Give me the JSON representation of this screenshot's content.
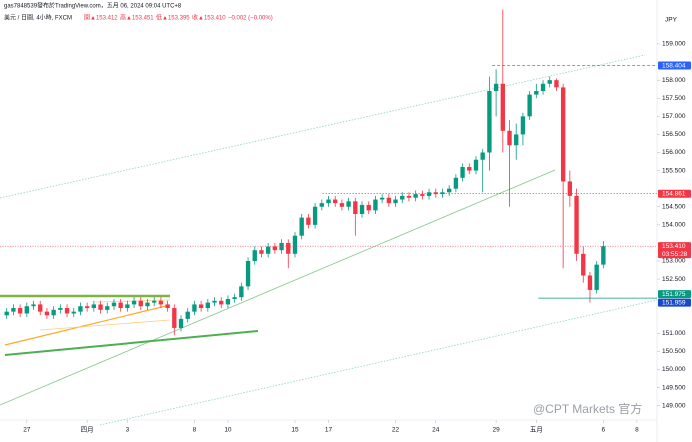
{
  "header": {
    "publisher": "gas7848539發布於TradingView.com，五月 06, 2024 09:04 UTC+8",
    "symbol": "美元 / 日圓, 4小時, FXCM",
    "open": "開▲153.412",
    "high": "高▲153.451",
    "low": "低▲153.395",
    "close": "收▲153.410",
    "change": "−0.002 (−0.00%)"
  },
  "currency": "JPY",
  "countdown": "03:55:28",
  "watermark": "@CPT Markets 官方",
  "chart_data": {
    "type": "candlestick",
    "up_color": "#089981",
    "down_color": "#f23645",
    "open": [
      151.5,
      151.6,
      151.7,
      151.55,
      151.75,
      151.8,
      151.6,
      151.5,
      151.65,
      151.7,
      151.55,
      151.6,
      151.75,
      151.7,
      151.8,
      151.65,
      151.75,
      151.85,
      151.7,
      151.8,
      151.9,
      151.75,
      151.85,
      151.9,
      151.8,
      151.7,
      151.15,
      151.4,
      151.6,
      151.8,
      151.7,
      151.85,
      151.9,
      151.8,
      151.95,
      152.0,
      152.3,
      153.0,
      153.3,
      153.2,
      153.4,
      153.3,
      153.5,
      153.2,
      153.7,
      154.2,
      154.0,
      154.5,
      154.6,
      154.7,
      154.6,
      154.5,
      154.65,
      154.3,
      154.55,
      154.4,
      154.7,
      154.75,
      154.6,
      154.7,
      154.8,
      154.75,
      154.85,
      154.8,
      154.9,
      154.85,
      154.9,
      155.0,
      155.3,
      155.6,
      155.5,
      155.8,
      156.0,
      157.7,
      157.9,
      156.6,
      156.2,
      156.5,
      157.0,
      157.6,
      157.7,
      157.9,
      158.0,
      157.8,
      155.2,
      154.8,
      153.2,
      152.6,
      152.2,
      152.9
    ],
    "high": [
      151.7,
      151.8,
      151.8,
      151.85,
      151.9,
      151.9,
      151.7,
      151.75,
      151.8,
      151.8,
      151.7,
      151.85,
      151.85,
      151.9,
      151.9,
      151.85,
      151.95,
      151.95,
      151.9,
      152.0,
      152.0,
      151.95,
      152.0,
      152.0,
      151.9,
      151.8,
      151.5,
      151.7,
      151.9,
      151.9,
      151.95,
      152.0,
      152.0,
      152.05,
      152.1,
      152.4,
      153.1,
      153.4,
      153.4,
      153.5,
      153.5,
      153.6,
      153.6,
      153.8,
      154.3,
      154.3,
      154.6,
      154.7,
      154.8,
      154.8,
      154.7,
      154.75,
      154.75,
      154.65,
      154.65,
      154.8,
      154.85,
      154.85,
      154.8,
      154.9,
      154.9,
      154.95,
      154.95,
      155.0,
      155.0,
      155.0,
      155.1,
      155.4,
      155.7,
      155.7,
      155.9,
      156.1,
      158.1,
      158.3,
      159.95,
      156.9,
      156.8,
      157.1,
      157.7,
      157.9,
      158.0,
      158.1,
      158.05,
      157.9,
      155.5,
      155.0,
      153.4,
      152.7,
      153.0,
      153.55
    ],
    "low": [
      151.4,
      151.5,
      151.45,
      151.45,
      151.65,
      151.5,
      151.4,
      151.4,
      151.55,
      151.45,
      151.45,
      151.5,
      151.6,
      151.6,
      151.55,
      151.55,
      151.65,
      151.6,
      151.6,
      151.7,
      151.65,
      151.65,
      151.75,
      151.7,
      151.6,
      150.95,
      151.05,
      151.3,
      151.5,
      151.6,
      151.6,
      151.75,
      151.7,
      151.7,
      151.85,
      151.9,
      152.2,
      152.9,
      153.1,
      153.1,
      153.2,
      153.2,
      152.8,
      153.1,
      153.6,
      153.9,
      153.9,
      154.4,
      154.5,
      154.5,
      154.4,
      154.4,
      153.7,
      154.2,
      154.3,
      154.3,
      154.6,
      154.5,
      154.5,
      154.6,
      154.65,
      154.65,
      154.7,
      154.7,
      154.75,
      154.75,
      154.8,
      154.9,
      155.2,
      155.4,
      155.4,
      154.9,
      155.5,
      157.0,
      156.0,
      154.5,
      155.8,
      156.2,
      156.9,
      157.5,
      157.6,
      157.8,
      157.7,
      152.8,
      154.5,
      153.0,
      152.4,
      151.85,
      152.1,
      152.8
    ],
    "close": [
      151.6,
      151.7,
      151.55,
      151.75,
      151.8,
      151.6,
      151.5,
      151.65,
      151.7,
      151.55,
      151.6,
      151.75,
      151.7,
      151.8,
      151.65,
      151.75,
      151.85,
      151.7,
      151.8,
      151.9,
      151.75,
      151.85,
      151.9,
      151.8,
      151.7,
      151.15,
      151.4,
      151.6,
      151.8,
      151.7,
      151.85,
      151.9,
      151.8,
      151.95,
      152.0,
      152.3,
      153.0,
      153.3,
      153.2,
      153.4,
      153.3,
      153.5,
      153.2,
      153.7,
      154.2,
      154.0,
      154.5,
      154.6,
      154.7,
      154.6,
      154.5,
      154.65,
      154.3,
      154.55,
      154.4,
      154.7,
      154.75,
      154.6,
      154.7,
      154.8,
      154.75,
      154.85,
      154.8,
      154.9,
      154.85,
      154.9,
      155.0,
      155.3,
      155.6,
      155.5,
      155.8,
      156.0,
      157.7,
      157.9,
      156.6,
      156.2,
      156.5,
      157.0,
      157.6,
      157.7,
      157.9,
      158.0,
      157.8,
      155.2,
      154.8,
      153.2,
      152.6,
      152.2,
      152.9,
      153.41
    ],
    "xlim": [
      -1,
      97
    ],
    "xticks": [
      {
        "value": 3,
        "label": "27"
      },
      {
        "value": 12,
        "label": "四月"
      },
      {
        "value": 18,
        "label": "3"
      },
      {
        "value": 28,
        "label": "8"
      },
      {
        "value": 33,
        "label": "10"
      },
      {
        "value": 43,
        "label": "15"
      },
      {
        "value": 48,
        "label": "17"
      },
      {
        "value": 58,
        "label": "22"
      },
      {
        "value": 64,
        "label": "24"
      },
      {
        "value": 73,
        "label": "29"
      },
      {
        "value": 79,
        "label": "五月"
      },
      {
        "value": 89,
        "label": "6"
      },
      {
        "value": 94,
        "label": "8"
      }
    ],
    "ylim": [
      148.66,
      160.216
    ],
    "yticks": [
      {
        "value": 149,
        "label": "149.000"
      },
      {
        "value": 149.5,
        "label": "149.500"
      },
      {
        "value": 150,
        "label": "150.000"
      },
      {
        "value": 150.5,
        "label": "150.500"
      },
      {
        "value": 151,
        "label": "151.000"
      },
      {
        "value": 152.5,
        "label": "152.500"
      },
      {
        "value": 153,
        "label": "153.000"
      },
      {
        "value": 154,
        "label": "154.000"
      },
      {
        "value": 154.5,
        "label": "154.500"
      },
      {
        "value": 155.5,
        "label": "155.500"
      },
      {
        "value": 156,
        "label": "156.000"
      },
      {
        "value": 156.5,
        "label": "156.500"
      },
      {
        "value": 157,
        "label": "157.000"
      },
      {
        "value": 157.5,
        "label": "157.500"
      },
      {
        "value": 158,
        "label": "158.000"
      },
      {
        "value": 159,
        "label": "159.000"
      }
    ],
    "price_levels": [
      {
        "value": 158.404,
        "color": "#2962ff"
      },
      {
        "value": 154.861,
        "color": "#f23645"
      },
      {
        "value": {
          "value": 153.41,
          "label": "153.410"
        },
        "color": "#f23645"
      },
      {
        "value": 151.975,
        "color": "#089981"
      },
      {
        "value": 151.959,
        "color": "#1848cc"
      }
    ]
  }
}
